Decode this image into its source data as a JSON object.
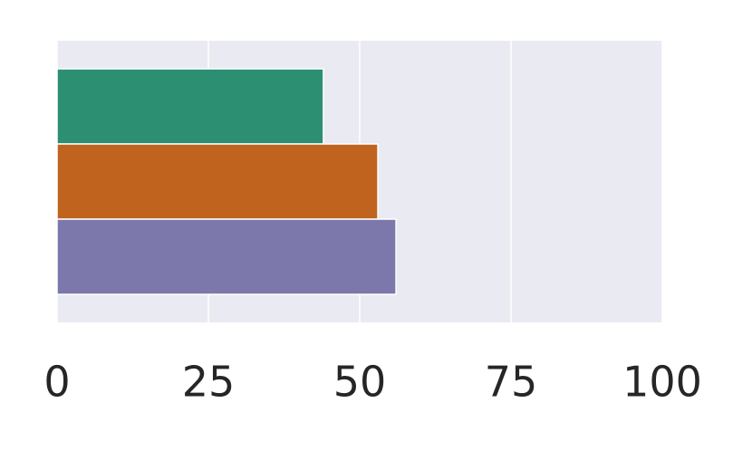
{
  "chart_data": {
    "type": "bar",
    "orientation": "horizontal",
    "categories": [
      null,
      null,
      null
    ],
    "values": [
      44,
      53,
      56
    ],
    "colors": [
      "#2c8f72",
      "#bf631f",
      "#7d78ab"
    ],
    "xlim": [
      0,
      100
    ],
    "xticks": [
      0,
      25,
      50,
      75,
      100
    ],
    "grid": true
  }
}
